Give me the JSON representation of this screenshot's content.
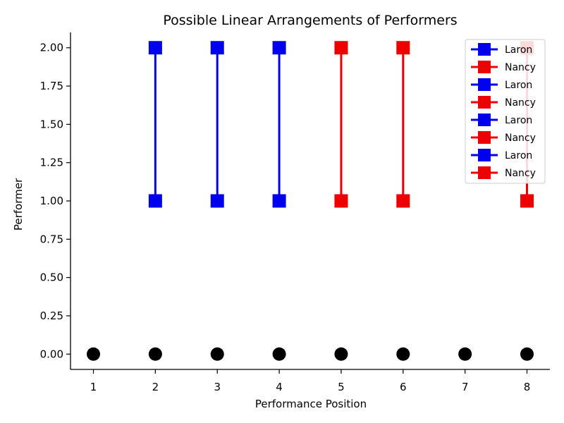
{
  "chart_data": {
    "type": "scatter",
    "title": "Possible Linear Arrangements of Performers",
    "xlabel": "Performance Position",
    "ylabel": "Performer",
    "xlim": [
      0.63,
      8.37
    ],
    "ylim": [
      -0.1,
      2.1
    ],
    "x_ticks": [
      1,
      2,
      3,
      4,
      5,
      6,
      7,
      8
    ],
    "x_tick_labels": [
      "1",
      "2",
      "3",
      "4",
      "5",
      "6",
      "7",
      "8"
    ],
    "y_ticks": [
      0,
      0.25,
      0.5,
      0.75,
      1.0,
      1.25,
      1.5,
      1.75,
      2.0
    ],
    "y_tick_labels": [
      "0.00",
      "0.25",
      "0.50",
      "0.75",
      "1.00",
      "1.25",
      "1.50",
      "1.75",
      "2.00"
    ],
    "grid": false,
    "legend_position": "top-right",
    "base_points": {
      "color": "#000000",
      "x": [
        1,
        2,
        3,
        4,
        5,
        6,
        7,
        8
      ],
      "y": [
        0,
        0,
        0,
        0,
        0,
        0,
        0,
        0
      ]
    },
    "series": [
      {
        "name": "Laron",
        "color": "#0000ee",
        "x": [
          2,
          2
        ],
        "y": [
          1,
          2
        ]
      },
      {
        "name": "Nancy",
        "color": "#ee0000",
        "x": [
          5,
          5
        ],
        "y": [
          1,
          2
        ]
      },
      {
        "name": "Laron",
        "color": "#0000ee",
        "x": [
          3,
          3
        ],
        "y": [
          1,
          2
        ]
      },
      {
        "name": "Nancy",
        "color": "#ee0000",
        "x": [
          6,
          6
        ],
        "y": [
          1,
          2
        ]
      },
      {
        "name": "Laron",
        "color": "#0000ee",
        "x": [
          4,
          4
        ],
        "y": [
          1,
          2
        ]
      },
      {
        "name": "Nancy",
        "color": "#ee0000",
        "x": [
          8,
          8
        ],
        "y": [
          1,
          2
        ]
      },
      {
        "name": "Laron",
        "color": "#0000ee",
        "x": [],
        "y": []
      },
      {
        "name": "Nancy",
        "color": "#ee0000",
        "x": [],
        "y": []
      }
    ]
  }
}
